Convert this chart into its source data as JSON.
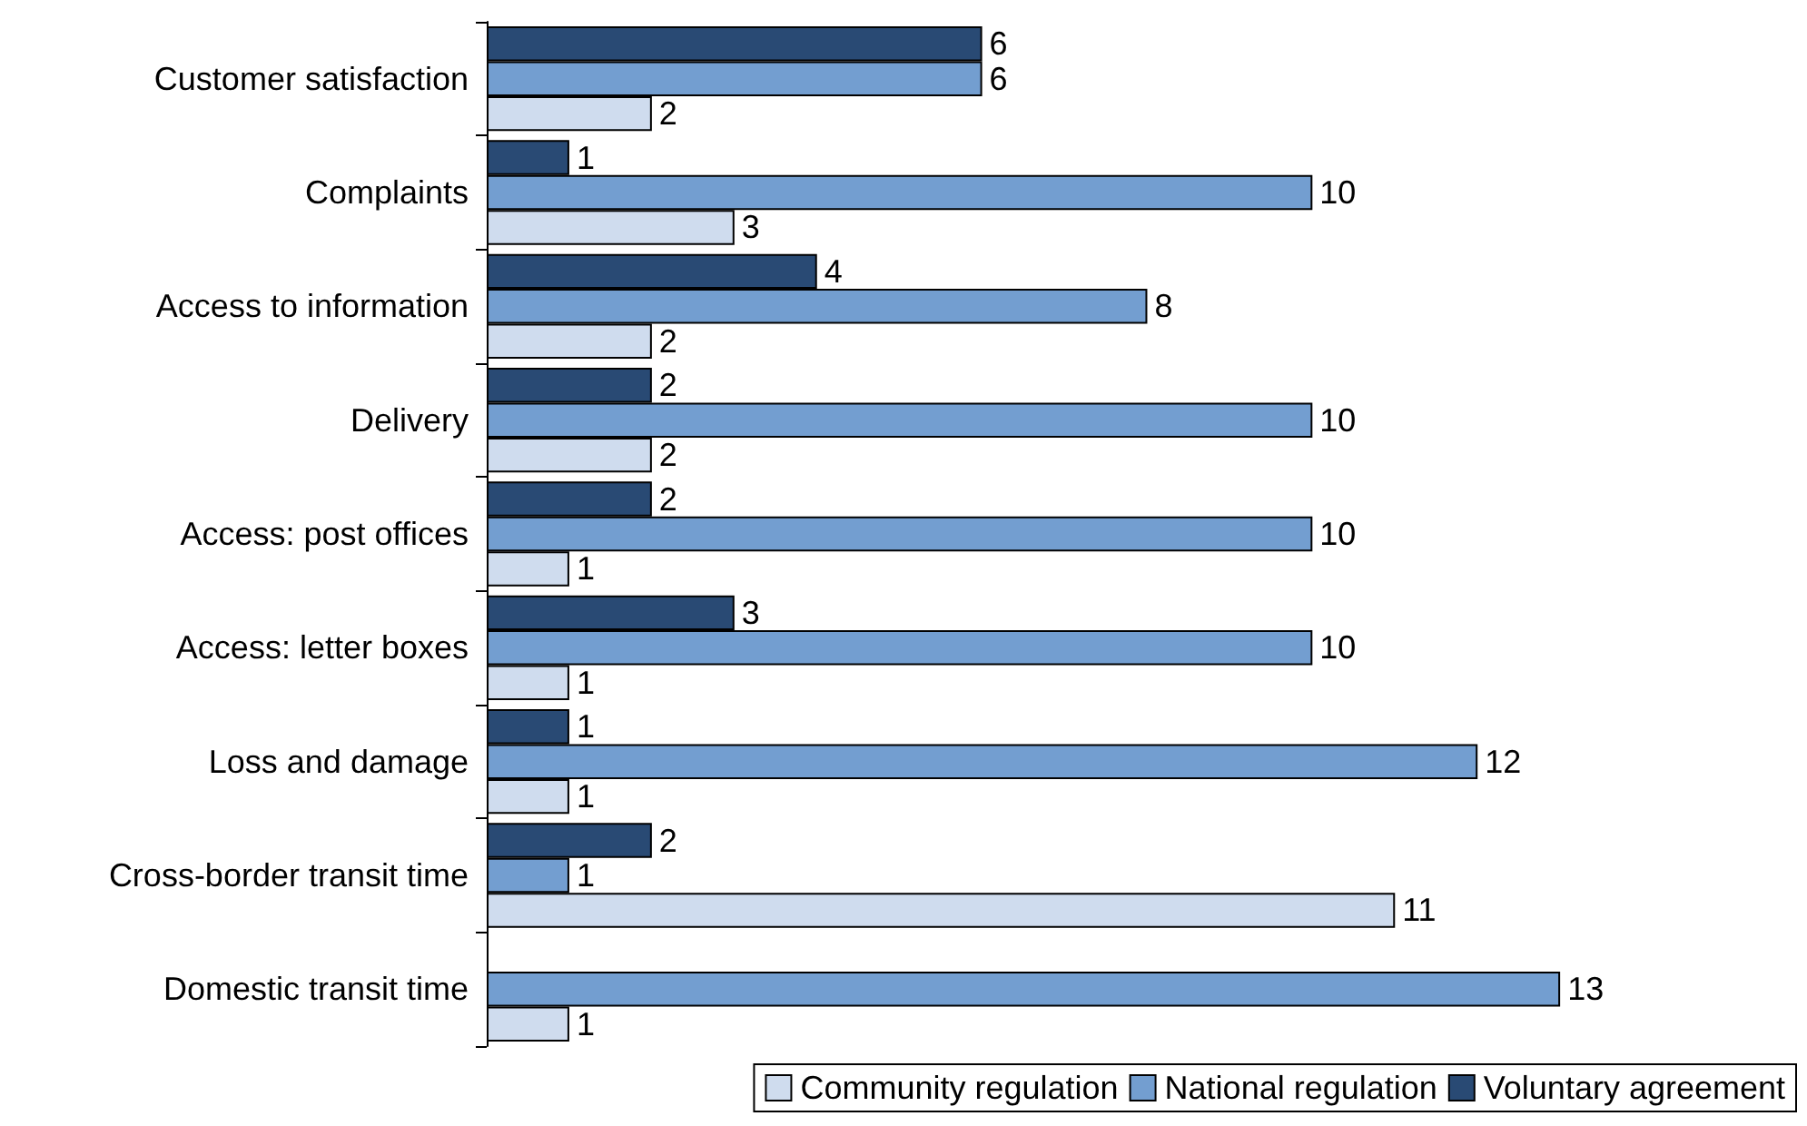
{
  "chart_data": {
    "type": "bar",
    "orientation": "horizontal",
    "categories": [
      "Customer satisfaction",
      "Complaints",
      "Access to information",
      "Delivery",
      "Access: post offices",
      "Access: letter boxes",
      "Loss and damage",
      "Cross-border transit time",
      "Domestic transit time"
    ],
    "series": [
      {
        "name": "Community regulation",
        "color": "#cfdcee",
        "values": [
          2,
          3,
          2,
          2,
          1,
          1,
          1,
          11,
          1
        ]
      },
      {
        "name": "National regulation",
        "color": "#739ed0",
        "values": [
          6,
          10,
          8,
          10,
          10,
          10,
          12,
          1,
          13
        ]
      },
      {
        "name": "Voluntary agreement",
        "color": "#294a74",
        "values": [
          6,
          1,
          4,
          2,
          2,
          3,
          1,
          2,
          null
        ]
      }
    ],
    "data_labels": true,
    "legend": "bottom right",
    "grid": false
  }
}
